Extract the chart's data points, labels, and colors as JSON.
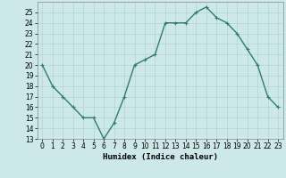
{
  "x": [
    0,
    1,
    2,
    3,
    4,
    5,
    6,
    7,
    8,
    9,
    10,
    11,
    12,
    13,
    14,
    15,
    16,
    17,
    18,
    19,
    20,
    21,
    22,
    23
  ],
  "y": [
    20,
    18,
    17,
    16,
    15,
    15,
    13,
    14.5,
    17,
    20,
    20.5,
    21,
    24,
    24,
    24,
    25,
    25.5,
    24.5,
    24,
    23,
    21.5,
    20,
    17,
    16
  ],
  "line_color": "#2e7d6e",
  "marker_color": "#2e7d6e",
  "bg_color": "#cce8e8",
  "grid_color": "#b0d4d4",
  "xlabel": "Humidex (Indice chaleur)",
  "ylim": [
    13,
    26
  ],
  "xlim": [
    -0.5,
    23.5
  ],
  "yticks": [
    13,
    14,
    15,
    16,
    17,
    18,
    19,
    20,
    21,
    22,
    23,
    24,
    25
  ],
  "xticks": [
    0,
    1,
    2,
    3,
    4,
    5,
    6,
    7,
    8,
    9,
    10,
    11,
    12,
    13,
    14,
    15,
    16,
    17,
    18,
    19,
    20,
    21,
    22,
    23
  ],
  "tick_fontsize": 5.5,
  "xlabel_fontsize": 6.5,
  "marker_size": 2.5,
  "line_width": 1.0
}
